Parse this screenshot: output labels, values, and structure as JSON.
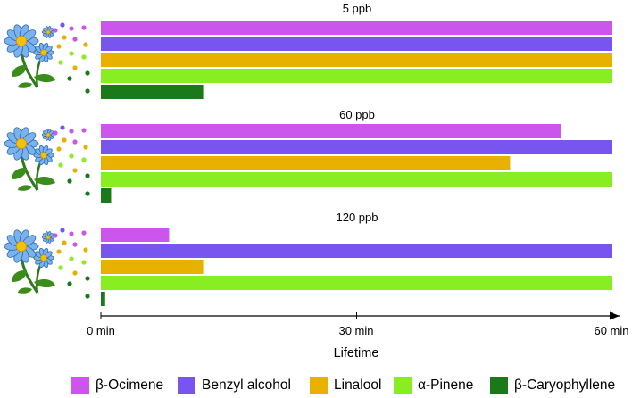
{
  "chart_data": {
    "type": "bar",
    "orientation": "horizontal",
    "x_axis": {
      "label": "Lifetime",
      "range": [
        0,
        60
      ],
      "ticks": [
        {
          "value": 0,
          "label": "0 min"
        },
        {
          "value": 30,
          "label": "30 min"
        },
        {
          "value": 60,
          "label": "60 min"
        }
      ]
    },
    "series": [
      {
        "name": "β-Ocimene",
        "color": "#cc55ee"
      },
      {
        "name": "Benzyl alcohol",
        "color": "#7755ee"
      },
      {
        "name": "Linalool",
        "color": "#e8b100"
      },
      {
        "name": "α-Pinene",
        "color": "#88ee22"
      },
      {
        "name": "β-Caryophyllene",
        "color": "#1a7a1a"
      }
    ],
    "panels": [
      {
        "title": "5 ppb",
        "values": [
          60,
          60,
          60,
          60,
          12
        ]
      },
      {
        "title": "60 ppb",
        "values": [
          54,
          60,
          48,
          60,
          1.2
        ]
      },
      {
        "title": "120 ppb",
        "values": [
          8,
          60,
          12,
          60,
          0.5
        ]
      }
    ],
    "legend_position": "bottom",
    "grid": false
  },
  "icons": [
    "flower-icon"
  ]
}
